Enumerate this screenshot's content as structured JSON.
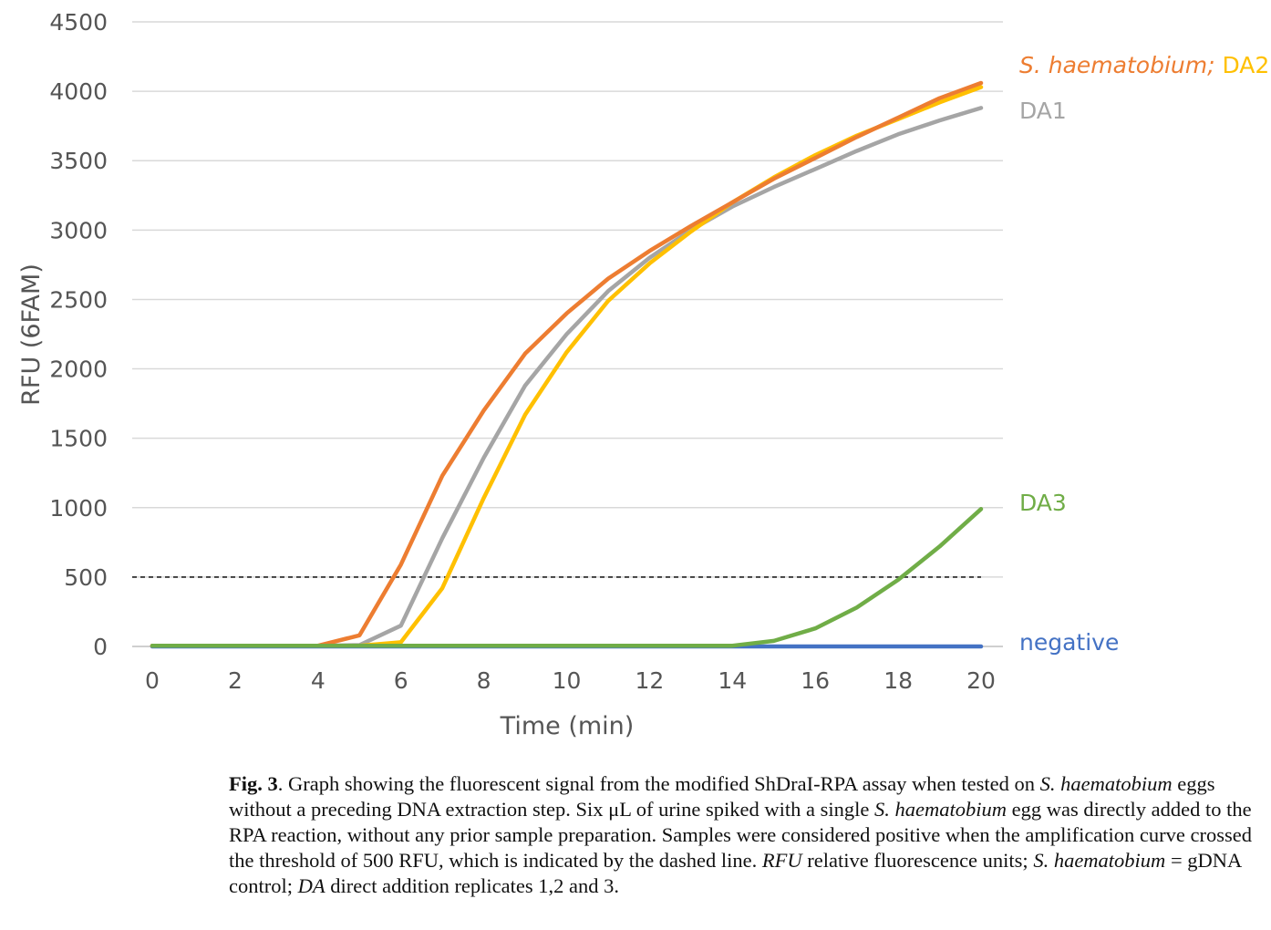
{
  "chart_data": {
    "type": "line",
    "xlabel": "Time (min)",
    "ylabel": "RFU (6FAM)",
    "xlim": [
      0,
      20
    ],
    "ylim": [
      0,
      4500
    ],
    "x_ticks": [
      0,
      2,
      4,
      6,
      8,
      10,
      12,
      14,
      16,
      18,
      20
    ],
    "y_ticks": [
      0,
      500,
      1000,
      1500,
      2000,
      2500,
      3000,
      3500,
      4000,
      4500
    ],
    "grid": "horizontal",
    "threshold": {
      "value": 500,
      "style": "dashed",
      "color": "#222222"
    },
    "series": [
      {
        "name": "negative",
        "color": "#4472c4",
        "x": [
          0,
          1,
          2,
          3,
          4,
          5,
          6,
          7,
          8,
          9,
          10,
          11,
          12,
          13,
          14,
          15,
          16,
          17,
          18,
          19,
          20
        ],
        "y": [
          0,
          0,
          0,
          0,
          0,
          0,
          0,
          0,
          0,
          0,
          0,
          0,
          0,
          0,
          0,
          0,
          0,
          0,
          0,
          0,
          0
        ]
      },
      {
        "name": "DA1",
        "color": "#a5a5a5",
        "x": [
          0,
          1,
          2,
          3,
          4,
          5,
          6,
          7,
          8,
          9,
          10,
          11,
          12,
          13,
          14,
          15,
          16,
          17,
          18,
          19,
          20
        ],
        "y": [
          5,
          5,
          5,
          5,
          5,
          10,
          150,
          780,
          1360,
          1880,
          2250,
          2560,
          2800,
          3000,
          3170,
          3310,
          3440,
          3570,
          3690,
          3790,
          3880
        ]
      },
      {
        "name": "DA2",
        "color": "#ffc000",
        "x": [
          0,
          1,
          2,
          3,
          4,
          5,
          6,
          7,
          8,
          9,
          10,
          11,
          12,
          13,
          14,
          15,
          16,
          17,
          18,
          19,
          20
        ],
        "y": [
          5,
          5,
          5,
          5,
          5,
          5,
          30,
          420,
          1070,
          1670,
          2120,
          2490,
          2760,
          2990,
          3200,
          3380,
          3540,
          3680,
          3800,
          3920,
          4030
        ]
      },
      {
        "name": "S. haematobium",
        "color": "#ed7d31",
        "x": [
          0,
          1,
          2,
          3,
          4,
          5,
          6,
          7,
          8,
          9,
          10,
          11,
          12,
          13,
          14,
          15,
          16,
          17,
          18,
          19,
          20
        ],
        "y": [
          5,
          5,
          5,
          5,
          5,
          80,
          590,
          1230,
          1700,
          2110,
          2400,
          2650,
          2850,
          3030,
          3200,
          3370,
          3520,
          3670,
          3810,
          3950,
          4060
        ]
      },
      {
        "name": "DA3",
        "color": "#70ad47",
        "x": [
          0,
          1,
          2,
          3,
          4,
          5,
          6,
          7,
          8,
          9,
          10,
          11,
          12,
          13,
          14,
          15,
          16,
          17,
          18,
          19,
          20
        ],
        "y": [
          5,
          5,
          5,
          5,
          5,
          5,
          5,
          5,
          5,
          5,
          5,
          5,
          5,
          5,
          5,
          40,
          130,
          280,
          480,
          720,
          990
        ]
      }
    ],
    "legend": {
      "placement": "right",
      "labels": [
        {
          "key": "s_haem",
          "text": "S. haematobium; ",
          "color": "#ed7d31",
          "italic": true
        },
        {
          "key": "da2",
          "text": "DA2",
          "color": "#ffc000",
          "italic": false
        },
        {
          "key": "da1",
          "text": "DA1",
          "color": "#a5a5a5",
          "italic": false
        },
        {
          "key": "da3",
          "text": "DA3",
          "color": "#70ad47",
          "italic": false
        },
        {
          "key": "negative",
          "text": "negative",
          "color": "#4472c4",
          "italic": false
        }
      ]
    }
  },
  "caption": {
    "fig_label": "Fig. 3",
    "t1": ".  Graph showing the fluorescent signal from the modified ShDraI-RPA assay when tested on ",
    "i1": "S. haematobium",
    "t2": " eggs without a preceding DNA extraction step. Six μL of urine spiked with a single ",
    "i2": "S. haematobium",
    "t3": " egg was directly added to the RPA reaction, without any prior sample preparation. Samples were considered positive when the amplification curve crossed the threshold of 500 RFU, which is indicated by the dashed line. ",
    "i3": "RFU",
    "t4": " relative fluorescence units; ",
    "i4": "S. haematobium",
    "t5": " = gDNA control; ",
    "i5": "DA",
    "t6": " direct addition replicates 1,2 and 3."
  }
}
